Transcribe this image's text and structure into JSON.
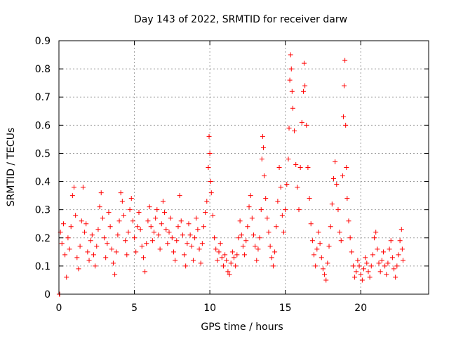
{
  "chart_data": {
    "type": "scatter",
    "title": "Day 143 of 2022, SRMTID for receiver darw",
    "xlabel": "GPS time / hours",
    "ylabel": "SRMTID / TECUs",
    "xlim": [
      0,
      24.5
    ],
    "ylim": [
      0,
      0.9
    ],
    "xticks": [
      0,
      5,
      10,
      15,
      20
    ],
    "xtick_labels": [
      "0",
      "5",
      "10",
      "15",
      "20"
    ],
    "yticks": [
      0,
      0.1,
      0.2,
      0.3,
      0.4,
      0.5,
      0.6,
      0.7,
      0.8,
      0.9
    ],
    "ytick_labels": [
      "0",
      "0.1",
      "0.2",
      "0.3",
      "0.4",
      "0.5",
      "0.6",
      "0.7",
      "0.8",
      "0.9"
    ],
    "grid": true,
    "marker": "+",
    "color": "#ff0000",
    "series": [
      {
        "name": "darw",
        "points": [
          [
            0.02,
            0.0
          ],
          [
            0.05,
            0.0
          ],
          [
            0.1,
            0.22
          ],
          [
            0.2,
            0.18
          ],
          [
            0.3,
            0.25
          ],
          [
            0.4,
            0.14
          ],
          [
            0.5,
            0.06
          ],
          [
            0.6,
            0.2
          ],
          [
            0.7,
            0.16
          ],
          [
            0.8,
            0.24
          ],
          [
            0.9,
            0.35
          ],
          [
            1.0,
            0.38
          ],
          [
            1.1,
            0.28
          ],
          [
            1.2,
            0.13
          ],
          [
            1.3,
            0.09
          ],
          [
            1.4,
            0.17
          ],
          [
            1.5,
            0.26
          ],
          [
            1.6,
            0.38
          ],
          [
            1.7,
            0.22
          ],
          [
            1.8,
            0.25
          ],
          [
            1.9,
            0.15
          ],
          [
            2.0,
            0.12
          ],
          [
            2.1,
            0.19
          ],
          [
            2.2,
            0.21
          ],
          [
            2.3,
            0.14
          ],
          [
            2.4,
            0.1
          ],
          [
            2.5,
            0.17
          ],
          [
            2.6,
            0.23
          ],
          [
            2.7,
            0.31
          ],
          [
            2.8,
            0.36
          ],
          [
            2.9,
            0.27
          ],
          [
            3.0,
            0.2
          ],
          [
            3.1,
            0.13
          ],
          [
            3.2,
            0.18
          ],
          [
            3.3,
            0.29
          ],
          [
            3.4,
            0.24
          ],
          [
            3.5,
            0.16
          ],
          [
            3.6,
            0.11
          ],
          [
            3.7,
            0.07
          ],
          [
            3.8,
            0.15
          ],
          [
            3.9,
            0.21
          ],
          [
            4.0,
            0.26
          ],
          [
            4.1,
            0.36
          ],
          [
            4.2,
            0.33
          ],
          [
            4.3,
            0.28
          ],
          [
            4.4,
            0.19
          ],
          [
            4.5,
            0.14
          ],
          [
            4.6,
            0.22
          ],
          [
            4.7,
            0.3
          ],
          [
            4.8,
            0.34
          ],
          [
            4.9,
            0.26
          ],
          [
            5.0,
            0.2
          ],
          [
            5.1,
            0.15
          ],
          [
            5.2,
            0.24
          ],
          [
            5.3,
            0.29
          ],
          [
            5.4,
            0.23
          ],
          [
            5.5,
            0.17
          ],
          [
            5.6,
            0.13
          ],
          [
            5.7,
            0.08
          ],
          [
            5.8,
            0.18
          ],
          [
            5.9,
            0.26
          ],
          [
            6.0,
            0.31
          ],
          [
            6.1,
            0.24
          ],
          [
            6.2,
            0.19
          ],
          [
            6.3,
            0.22
          ],
          [
            6.4,
            0.27
          ],
          [
            6.5,
            0.3
          ],
          [
            6.6,
            0.21
          ],
          [
            6.7,
            0.16
          ],
          [
            6.8,
            0.25
          ],
          [
            6.9,
            0.33
          ],
          [
            7.0,
            0.29
          ],
          [
            7.1,
            0.23
          ],
          [
            7.2,
            0.18
          ],
          [
            7.3,
            0.22
          ],
          [
            7.4,
            0.27
          ],
          [
            7.5,
            0.2
          ],
          [
            7.6,
            0.15
          ],
          [
            7.7,
            0.12
          ],
          [
            7.8,
            0.19
          ],
          [
            7.9,
            0.24
          ],
          [
            8.0,
            0.35
          ],
          [
            8.1,
            0.26
          ],
          [
            8.2,
            0.21
          ],
          [
            8.3,
            0.14
          ],
          [
            8.4,
            0.1
          ],
          [
            8.5,
            0.18
          ],
          [
            8.6,
            0.25
          ],
          [
            8.7,
            0.21
          ],
          [
            8.8,
            0.17
          ],
          [
            8.9,
            0.12
          ],
          [
            9.0,
            0.2
          ],
          [
            9.1,
            0.27
          ],
          [
            9.2,
            0.23
          ],
          [
            9.3,
            0.16
          ],
          [
            9.4,
            0.11
          ],
          [
            9.5,
            0.18
          ],
          [
            9.6,
            0.24
          ],
          [
            9.7,
            0.29
          ],
          [
            9.8,
            0.33
          ],
          [
            9.9,
            0.45
          ],
          [
            9.95,
            0.56
          ],
          [
            10.0,
            0.5
          ],
          [
            10.05,
            0.4
          ],
          [
            10.1,
            0.36
          ],
          [
            10.2,
            0.28
          ],
          [
            10.3,
            0.2
          ],
          [
            10.4,
            0.16
          ],
          [
            10.5,
            0.12
          ],
          [
            10.6,
            0.15
          ],
          [
            10.7,
            0.18
          ],
          [
            10.8,
            0.13
          ],
          [
            10.9,
            0.1
          ],
          [
            11.0,
            0.14
          ],
          [
            11.1,
            0.12
          ],
          [
            11.2,
            0.08
          ],
          [
            11.3,
            0.07
          ],
          [
            11.4,
            0.11
          ],
          [
            11.5,
            0.15
          ],
          [
            11.6,
            0.13
          ],
          [
            11.7,
            0.1
          ],
          [
            11.8,
            0.14
          ],
          [
            11.9,
            0.2
          ],
          [
            12.0,
            0.26
          ],
          [
            12.1,
            0.21
          ],
          [
            12.2,
            0.17
          ],
          [
            12.3,
            0.14
          ],
          [
            12.4,
            0.19
          ],
          [
            12.5,
            0.24
          ],
          [
            12.6,
            0.31
          ],
          [
            12.7,
            0.35
          ],
          [
            12.8,
            0.27
          ],
          [
            12.9,
            0.21
          ],
          [
            13.0,
            0.17
          ],
          [
            13.1,
            0.12
          ],
          [
            13.2,
            0.16
          ],
          [
            13.3,
            0.2
          ],
          [
            13.4,
            0.3
          ],
          [
            13.45,
            0.48
          ],
          [
            13.5,
            0.56
          ],
          [
            13.55,
            0.52
          ],
          [
            13.6,
            0.42
          ],
          [
            13.7,
            0.34
          ],
          [
            13.8,
            0.27
          ],
          [
            13.9,
            0.22
          ],
          [
            14.0,
            0.17
          ],
          [
            14.1,
            0.13
          ],
          [
            14.2,
            0.1
          ],
          [
            14.3,
            0.15
          ],
          [
            14.4,
            0.24
          ],
          [
            14.5,
            0.33
          ],
          [
            14.6,
            0.45
          ],
          [
            14.7,
            0.38
          ],
          [
            14.8,
            0.28
          ],
          [
            14.9,
            0.22
          ],
          [
            15.0,
            0.3
          ],
          [
            15.1,
            0.39
          ],
          [
            15.2,
            0.48
          ],
          [
            15.25,
            0.59
          ],
          [
            15.3,
            0.76
          ],
          [
            15.35,
            0.85
          ],
          [
            15.4,
            0.8
          ],
          [
            15.45,
            0.72
          ],
          [
            15.5,
            0.66
          ],
          [
            15.6,
            0.58
          ],
          [
            15.7,
            0.46
          ],
          [
            15.8,
            0.38
          ],
          [
            15.9,
            0.3
          ],
          [
            16.0,
            0.45
          ],
          [
            16.1,
            0.61
          ],
          [
            16.2,
            0.72
          ],
          [
            16.25,
            0.82
          ],
          [
            16.3,
            0.74
          ],
          [
            16.4,
            0.6
          ],
          [
            16.5,
            0.45
          ],
          [
            16.6,
            0.34
          ],
          [
            16.7,
            0.25
          ],
          [
            16.8,
            0.19
          ],
          [
            16.9,
            0.14
          ],
          [
            17.0,
            0.1
          ],
          [
            17.1,
            0.16
          ],
          [
            17.2,
            0.22
          ],
          [
            17.3,
            0.18
          ],
          [
            17.4,
            0.13
          ],
          [
            17.5,
            0.09
          ],
          [
            17.6,
            0.07
          ],
          [
            17.7,
            0.05
          ],
          [
            17.8,
            0.11
          ],
          [
            17.9,
            0.17
          ],
          [
            18.0,
            0.24
          ],
          [
            18.1,
            0.32
          ],
          [
            18.2,
            0.41
          ],
          [
            18.3,
            0.47
          ],
          [
            18.4,
            0.39
          ],
          [
            18.5,
            0.3
          ],
          [
            18.6,
            0.22
          ],
          [
            18.7,
            0.19
          ],
          [
            18.8,
            0.42
          ],
          [
            18.85,
            0.63
          ],
          [
            18.9,
            0.74
          ],
          [
            18.95,
            0.83
          ],
          [
            19.0,
            0.6
          ],
          [
            19.05,
            0.45
          ],
          [
            19.1,
            0.34
          ],
          [
            19.2,
            0.26
          ],
          [
            19.3,
            0.2
          ],
          [
            19.4,
            0.15
          ],
          [
            19.5,
            0.1
          ],
          [
            19.6,
            0.06
          ],
          [
            19.7,
            0.08
          ],
          [
            19.8,
            0.12
          ],
          [
            19.9,
            0.1
          ],
          [
            20.0,
            0.07
          ],
          [
            20.1,
            0.05
          ],
          [
            20.2,
            0.09
          ],
          [
            20.3,
            0.13
          ],
          [
            20.4,
            0.11
          ],
          [
            20.5,
            0.08
          ],
          [
            20.6,
            0.06
          ],
          [
            20.7,
            0.1
          ],
          [
            20.8,
            0.14
          ],
          [
            20.9,
            0.2
          ],
          [
            21.0,
            0.22
          ],
          [
            21.1,
            0.16
          ],
          [
            21.2,
            0.11
          ],
          [
            21.3,
            0.08
          ],
          [
            21.4,
            0.12
          ],
          [
            21.5,
            0.15
          ],
          [
            21.6,
            0.1
          ],
          [
            21.7,
            0.07
          ],
          [
            21.8,
            0.11
          ],
          [
            21.9,
            0.16
          ],
          [
            22.0,
            0.19
          ],
          [
            22.1,
            0.13
          ],
          [
            22.2,
            0.09
          ],
          [
            22.3,
            0.06
          ],
          [
            22.4,
            0.1
          ],
          [
            22.5,
            0.14
          ],
          [
            22.6,
            0.19
          ],
          [
            22.7,
            0.23
          ],
          [
            22.75,
            0.16
          ],
          [
            22.8,
            0.12
          ]
        ]
      }
    ]
  }
}
